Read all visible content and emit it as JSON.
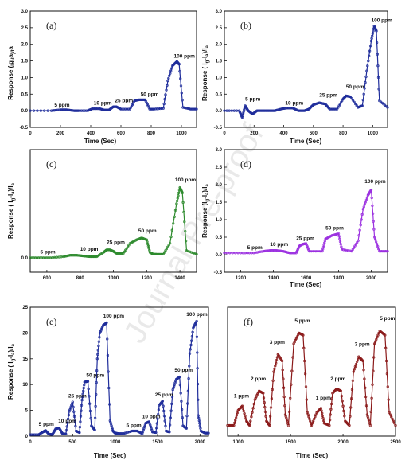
{
  "watermark": "Journal Pre-proof",
  "chart_data": [
    {
      "type": "line",
      "panel": "(a)",
      "xlabel": "Time (Sec)",
      "ylabel": "Response ( Iₐ-Iₐ)/Iₐ",
      "ylabel_parts": [
        "Response (",
        "I",
        "g",
        "-I",
        "a",
        ")/I",
        "a"
      ],
      "xlim": [
        0,
        1100
      ],
      "ylim": [
        -0.5,
        3.0
      ],
      "xticks": [
        0,
        200,
        400,
        600,
        800,
        1000
      ],
      "yticks": [
        -0.5,
        0.0,
        0.5,
        1.0,
        1.5,
        2.0,
        2.5,
        3.0
      ],
      "ytick_labels": [
        "-0.5",
        "0.0",
        "0.5",
        "1.0",
        "1.5",
        "2.0",
        "2.5",
        "3.0"
      ],
      "color": "#1f2d9b",
      "series": [
        {
          "x": [
            0,
            140,
            200,
            240,
            290,
            320,
            380,
            410,
            460,
            490,
            520,
            550,
            570,
            600,
            660,
            690,
            720,
            760,
            790,
            820,
            880,
            910,
            940,
            970,
            985,
            1010,
            1060,
            1100
          ],
          "y": [
            0.0,
            0.0,
            0.03,
            0.03,
            0.0,
            0.0,
            0.0,
            0.06,
            0.06,
            0.02,
            0.02,
            0.12,
            0.12,
            0.05,
            0.05,
            0.3,
            0.33,
            0.33,
            0.05,
            0.05,
            0.07,
            0.9,
            1.35,
            1.48,
            1.4,
            0.1,
            0.05,
            0.05
          ]
        }
      ],
      "annotations": [
        {
          "text": "5 ppm",
          "x": 160,
          "y": 0.12
        },
        {
          "text": "10 ppm",
          "x": 420,
          "y": 0.18
        },
        {
          "text": "25 ppm",
          "x": 560,
          "y": 0.25
        },
        {
          "text": "50 ppm",
          "x": 730,
          "y": 0.45
        },
        {
          "text": "100 ppm",
          "x": 950,
          "y": 1.6
        }
      ]
    },
    {
      "type": "line",
      "panel": "(b)",
      "xlabel": "Time (Sec)",
      "ylabel_parts": [
        "Response ( I",
        "g",
        "-I",
        "a",
        ")/I",
        "a"
      ],
      "xlim": [
        0,
        1100
      ],
      "ylim": [
        -0.5,
        3.0
      ],
      "xticks": [
        0,
        200,
        400,
        600,
        800,
        1000
      ],
      "yticks": [
        -0.5,
        0.0,
        0.5,
        1.0,
        1.5,
        2.0,
        2.5,
        3.0
      ],
      "ytick_labels": [
        "-0.5",
        "0.0",
        "0.5",
        "1.0",
        "1.5",
        "2.0",
        "2.5",
        "3.0"
      ],
      "color": "#1f2d9b",
      "series": [
        {
          "x": [
            0,
            100,
            120,
            140,
            160,
            190,
            220,
            260,
            300,
            340,
            380,
            420,
            460,
            500,
            540,
            570,
            600,
            640,
            680,
            710,
            760,
            800,
            820,
            850,
            900,
            930,
            960,
            990,
            1010,
            1025,
            1045,
            1100
          ],
          "y": [
            0.0,
            0.0,
            -0.2,
            0.15,
            0.0,
            -0.1,
            0.0,
            0.0,
            0.0,
            0.0,
            0.05,
            0.08,
            0.08,
            0.0,
            0.0,
            0.05,
            0.18,
            0.24,
            0.2,
            0.05,
            0.05,
            0.35,
            0.45,
            0.42,
            0.1,
            0.15,
            1.2,
            2.1,
            2.55,
            2.4,
            0.3,
            0.1
          ]
        }
      ],
      "annotations": [
        {
          "text": "5 ppm",
          "x": 140,
          "y": 0.3
        },
        {
          "text": "10 ppm",
          "x": 410,
          "y": 0.18
        },
        {
          "text": "25 ppm",
          "x": 640,
          "y": 0.42
        },
        {
          "text": "50 ppm",
          "x": 820,
          "y": 0.68
        },
        {
          "text": "100 ppm",
          "x": 990,
          "y": 2.68
        }
      ]
    },
    {
      "type": "line",
      "panel": "(c)",
      "xlabel": "",
      "ylabel_parts": [
        "Response ( I",
        "g",
        "-I",
        "a",
        ")/I",
        "a"
      ],
      "xlim": [
        500,
        1500
      ],
      "ylim": [
        -0.4,
        3.0
      ],
      "xticks": [
        600,
        800,
        1000,
        1200,
        1400
      ],
      "yticks": [
        0.0
      ],
      "ytick_labels": [
        "0.0"
      ],
      "color": "#2e8b2e",
      "series": [
        {
          "x": [
            500,
            560,
            620,
            700,
            740,
            780,
            820,
            860,
            900,
            940,
            960,
            980,
            1000,
            1020,
            1060,
            1100,
            1140,
            1170,
            1200,
            1220,
            1240,
            1260,
            1300,
            1340,
            1380,
            1400,
            1415,
            1440,
            1500
          ],
          "y": [
            0.0,
            0.0,
            0.0,
            0.03,
            0.07,
            0.07,
            0.05,
            0.03,
            0.03,
            0.15,
            0.22,
            0.22,
            0.18,
            0.12,
            0.12,
            0.4,
            0.5,
            0.55,
            0.5,
            0.15,
            0.1,
            0.1,
            0.1,
            0.4,
            1.5,
            1.95,
            1.8,
            0.2,
            0.1
          ]
        }
      ],
      "annotations": [
        {
          "text": "5 ppm",
          "x": 560,
          "y": 0.12
        },
        {
          "text": "10 ppm",
          "x": 800,
          "y": 0.2
        },
        {
          "text": "25 ppm",
          "x": 960,
          "y": 0.38
        },
        {
          "text": "50 ppm",
          "x": 1150,
          "y": 0.7
        },
        {
          "text": "100 ppm",
          "x": 1370,
          "y": 2.12
        }
      ]
    },
    {
      "type": "line",
      "panel": "(d)",
      "xlabel": "Time (Sec)",
      "ylabel_parts": [
        "Response (I",
        "g",
        "-I",
        "a",
        ")/I",
        "a"
      ],
      "xlim": [
        1100,
        2100
      ],
      "ylim": [
        -0.5,
        3.0
      ],
      "xticks": [
        1200,
        1400,
        1600,
        1800,
        2000
      ],
      "yticks": [
        -0.5,
        0.0,
        0.5,
        1.0,
        1.5,
        2.0,
        2.5,
        3.0
      ],
      "ytick_labels": [
        "-0.5",
        "0.0",
        "0.5",
        "1.0",
        "1.5",
        "2.0",
        "2.5",
        "3.0"
      ],
      "color": "#9b30e0",
      "series": [
        {
          "x": [
            1100,
            1200,
            1280,
            1340,
            1380,
            1420,
            1460,
            1500,
            1540,
            1560,
            1580,
            1600,
            1620,
            1700,
            1720,
            1760,
            1800,
            1820,
            1880,
            1920,
            1950,
            1980,
            2000,
            2020,
            2050,
            2100
          ],
          "y": [
            0.05,
            0.05,
            0.05,
            0.1,
            0.12,
            0.12,
            0.1,
            0.05,
            0.05,
            0.25,
            0.3,
            0.32,
            0.1,
            0.1,
            0.45,
            0.55,
            0.6,
            0.15,
            0.1,
            0.4,
            1.3,
            1.7,
            1.85,
            0.5,
            0.1,
            0.1
          ]
        }
      ],
      "annotations": [
        {
          "text": "5 ppm",
          "x": 1240,
          "y": 0.16
        },
        {
          "text": "10 ppm",
          "x": 1380,
          "y": 0.25
        },
        {
          "text": "25 ppm",
          "x": 1540,
          "y": 0.42
        },
        {
          "text": "50 ppm",
          "x": 1720,
          "y": 0.72
        },
        {
          "text": "100 ppm",
          "x": 1960,
          "y": 2.05
        }
      ]
    },
    {
      "type": "line",
      "panel": "(e)",
      "xlabel": "Time (Sec)",
      "ylabel_parts": [
        "Response ( I",
        "g",
        "-I",
        "a",
        ")/I",
        "a"
      ],
      "xlim": [
        0,
        2100
      ],
      "ylim": [
        0,
        25
      ],
      "xticks": [
        0,
        500,
        1000,
        1500,
        2000
      ],
      "yticks": [
        0,
        5,
        10,
        15,
        20,
        25
      ],
      "ytick_labels": [
        "0",
        "5",
        "10",
        "15",
        "20",
        "25"
      ],
      "color": "#1f2d9b",
      "series": [
        {
          "x": [
            0,
            100,
            150,
            180,
            220,
            260,
            300,
            340,
            380,
            420,
            460,
            500,
            540,
            580,
            610,
            640,
            680,
            720,
            760,
            790,
            820,
            860,
            900,
            940,
            975,
            1000,
            1040,
            1100,
            1200,
            1260,
            1320,
            1360,
            1400,
            1440,
            1480,
            1520,
            1560,
            1600,
            1640,
            1680,
            1720,
            1760,
            1800,
            1840,
            1880,
            1920,
            1960,
            1980,
            2010,
            2060,
            2100
          ],
          "y": [
            0.3,
            0.3,
            0.8,
            1.1,
            0.4,
            0.3,
            1.4,
            1.6,
            0.5,
            0.4,
            4.8,
            6.6,
            1.0,
            0.7,
            7.0,
            10.5,
            10.6,
            2.0,
            1.2,
            15.0,
            20.0,
            21.5,
            22.0,
            3.0,
            1.0,
            0.6,
            0.5,
            0.5,
            1.0,
            1.0,
            0.5,
            2.5,
            2.8,
            0.8,
            0.7,
            6.0,
            6.8,
            1.0,
            0.8,
            9.0,
            11.0,
            11.5,
            2.0,
            1.5,
            16.0,
            21.0,
            22.3,
            4.0,
            1.0,
            0.6,
            0.6
          ]
        }
      ],
      "annotations": [
        {
          "text": "5 ppm",
          "x": 100,
          "y": 2.0
        },
        {
          "text": "10 ppm",
          "x": 330,
          "y": 2.6
        },
        {
          "text": "25 ppm",
          "x": 450,
          "y": 7.5
        },
        {
          "text": "50 ppm",
          "x": 660,
          "y": 11.5
        },
        {
          "text": "100 ppm",
          "x": 860,
          "y": 23.0
        },
        {
          "text": "5 ppm",
          "x": 1130,
          "y": 1.8
        },
        {
          "text": "10 ppm",
          "x": 1320,
          "y": 3.5
        },
        {
          "text": "25 ppm",
          "x": 1470,
          "y": 7.7
        },
        {
          "text": "50 ppm",
          "x": 1700,
          "y": 12.5
        },
        {
          "text": "100 ppm",
          "x": 1840,
          "y": 23.3
        }
      ]
    },
    {
      "type": "line",
      "panel": "(f)",
      "xlabel": "Time (Sec)",
      "ylabel_parts": [],
      "xlim": [
        900,
        2500
      ],
      "ylim": [
        -0.05,
        0.55
      ],
      "xticks": [
        1000,
        1500,
        2000,
        2500
      ],
      "yticks": [],
      "ytick_labels": [],
      "color": "#8b1a1a",
      "series": [
        {
          "x": [
            900,
            960,
            1000,
            1040,
            1080,
            1110,
            1160,
            1200,
            1240,
            1270,
            1300,
            1340,
            1380,
            1420,
            1450,
            1480,
            1530,
            1580,
            1620,
            1660,
            1700,
            1750,
            1790,
            1820,
            1870,
            1900,
            1940,
            1980,
            2020,
            2060,
            2100,
            2150,
            2190,
            2230,
            2260,
            2300,
            2350,
            2400,
            2440,
            2500
          ],
          "y": [
            0.0,
            0.0,
            0.07,
            0.09,
            0.02,
            0.0,
            0.12,
            0.16,
            0.15,
            0.02,
            0.0,
            0.25,
            0.33,
            0.3,
            0.05,
            0.0,
            0.38,
            0.43,
            0.42,
            0.06,
            0.0,
            0.06,
            0.08,
            0.01,
            0.0,
            0.15,
            0.17,
            0.16,
            0.02,
            0.0,
            0.25,
            0.32,
            0.3,
            0.05,
            0.0,
            0.38,
            0.44,
            0.42,
            0.06,
            0.0
          ]
        }
      ],
      "annotations": [
        {
          "text": "1 ppm",
          "x": 960,
          "y": 0.13
        },
        {
          "text": "2 ppm",
          "x": 1120,
          "y": 0.21
        },
        {
          "text": "3 ppm",
          "x": 1300,
          "y": 0.38
        },
        {
          "text": "5 ppm",
          "x": 1540,
          "y": 0.48
        },
        {
          "text": "1 ppm",
          "x": 1740,
          "y": 0.12
        },
        {
          "text": "2 ppm",
          "x": 1880,
          "y": 0.21
        },
        {
          "text": "3 ppm",
          "x": 2110,
          "y": 0.37
        },
        {
          "text": "5 ppm",
          "x": 2350,
          "y": 0.49
        }
      ]
    }
  ]
}
